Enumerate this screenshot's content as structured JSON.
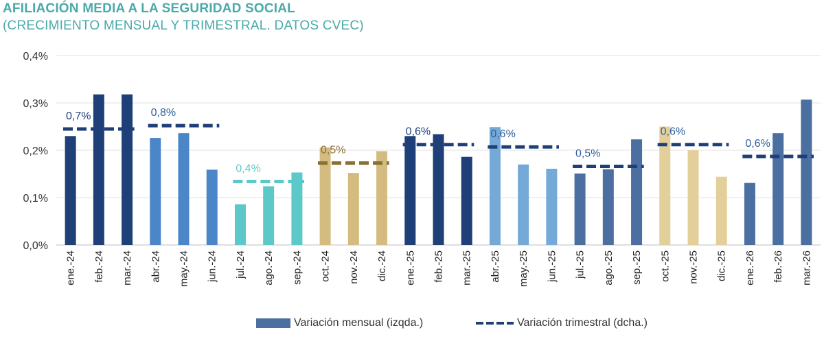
{
  "title": "AFILIACIÓN MEDIA A LA SEGURIDAD SOCIAL",
  "subtitle": "(CRECIMIENTO MENSUAL Y TRIMESTRAL. DATOS CVEC)",
  "chart_data": {
    "type": "bar",
    "title": "AFILIACIÓN MEDIA A LA SEGURIDAD SOCIAL",
    "subtitle": "(CRECIMIENTO MENSUAL Y TRIMESTRAL. DATOS CVEC)",
    "categories": [
      "ene.-24",
      "feb.-24",
      "mar.-24",
      "abr.-24",
      "may.-24",
      "jun.-24",
      "jul.-24",
      "ago.-24",
      "sep.-24",
      "oct.-24",
      "nov.-24",
      "dic.-24",
      "ene.-25",
      "feb.-25",
      "mar.-25",
      "abr.-25",
      "may.-25",
      "jun.-25",
      "jul.-25",
      "ago.-25",
      "sep.-25",
      "oct.-25",
      "nov.-25",
      "dic.-25",
      "ene.-26",
      "feb.-26",
      "mar.-26"
    ],
    "y_ticks": [
      "0,0%",
      "0,1%",
      "0,2%",
      "0,3%",
      "0,4%"
    ],
    "ylim": [
      0,
      0.4
    ],
    "grid": true,
    "legend_position": "bottom",
    "series": [
      {
        "name": "Variación mensual (izqda.)",
        "type": "bar",
        "color": "#4a6fa0",
        "values": [
          0.23,
          0.318,
          0.318,
          0.226,
          0.236,
          0.159,
          0.086,
          0.124,
          0.153,
          0.206,
          0.152,
          0.198,
          0.23,
          0.234,
          0.186,
          0.249,
          0.17,
          0.161,
          0.151,
          0.16,
          0.223,
          0.25,
          0.2,
          0.144,
          0.131,
          0.236,
          0.307
        ]
      },
      {
        "name": "Variación trimestral (dcha.)",
        "type": "line-dashed",
        "color": "#1f3f75",
        "quarters": [
          {
            "start": 0,
            "end": 2,
            "label": "0,7%",
            "level": 0.245
          },
          {
            "start": 3,
            "end": 5,
            "label": "0,8%",
            "level": 0.252
          },
          {
            "start": 6,
            "end": 8,
            "label": "0,4%",
            "level": 0.134
          },
          {
            "start": 9,
            "end": 11,
            "label": "0,5%",
            "level": 0.173
          },
          {
            "start": 12,
            "end": 14,
            "label": "0,6%",
            "level": 0.212
          },
          {
            "start": 15,
            "end": 17,
            "label": "0,6%",
            "level": 0.207
          },
          {
            "start": 18,
            "end": 20,
            "label": "0,5%",
            "level": 0.166
          },
          {
            "start": 21,
            "end": 23,
            "label": "0,6%",
            "level": 0.212
          },
          {
            "start": 24,
            "end": 26,
            "label": "0,6%",
            "level": 0.187
          }
        ]
      }
    ],
    "bar_colors": [
      "#1e3f78",
      "#1e3f78",
      "#1e3f78",
      "#4a86c8",
      "#4a86c8",
      "#4a86c8",
      "#5cc8c8",
      "#5cc8c8",
      "#5cc8c8",
      "#d4bc80",
      "#d4bc80",
      "#d4bc80",
      "#1e3f78",
      "#1e3f78",
      "#1e3f78",
      "#74a9d8",
      "#74a9d8",
      "#74a9d8",
      "#4a6fa0",
      "#4a6fa0",
      "#4a6fa0",
      "#e3cf9a",
      "#e3cf9a",
      "#e3cf9a",
      "#4a6fa0",
      "#4a6fa0",
      "#4a6fa0"
    ],
    "quarter_colors": [
      "#1e3f78",
      "#1e3f78",
      "#5cc8c8",
      "#8a7035",
      "#1e3f78",
      "#1e3f78",
      "#1e3f78",
      "#1e3f78",
      "#1e3f78"
    ],
    "quarter_label_colors": [
      "#1e3f78",
      "#2f5f9a",
      "#5cc8c8",
      "#8a7035",
      "#1e3f78",
      "#2f5f9a",
      "#2f5f9a",
      "#2f5f9a",
      "#2f5f9a"
    ]
  },
  "legend": {
    "monthly": "Variación mensual (izqda.)",
    "quarterly": "Variación trimestral (dcha.)"
  }
}
